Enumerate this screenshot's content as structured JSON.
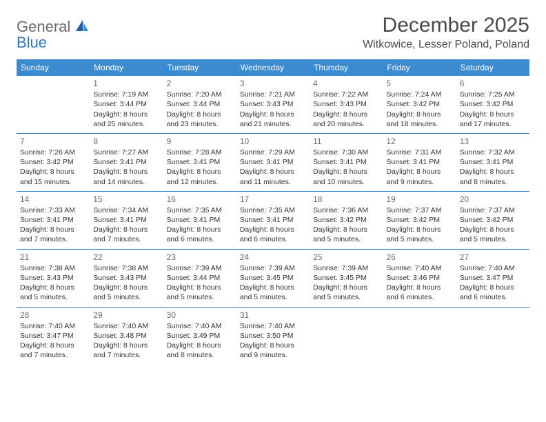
{
  "brand": {
    "word1": "General",
    "word2": "Blue",
    "text_color_gray": "#6a6a6a",
    "text_color_blue": "#2f78c3"
  },
  "header": {
    "title": "December 2025",
    "location": "Witkowice, Lesser Poland, Poland"
  },
  "colors": {
    "header_bg": "#3b8bd0",
    "header_fg": "#ffffff",
    "rule": "#2f78c3",
    "body_text": "#333333",
    "daynum": "#6a6a6a",
    "page_bg": "#ffffff"
  },
  "columns": [
    "Sunday",
    "Monday",
    "Tuesday",
    "Wednesday",
    "Thursday",
    "Friday",
    "Saturday"
  ],
  "weeks": [
    [
      null,
      {
        "n": "1",
        "sr": "Sunrise: 7:19 AM",
        "ss": "Sunset: 3:44 PM",
        "d1": "Daylight: 8 hours",
        "d2": "and 25 minutes."
      },
      {
        "n": "2",
        "sr": "Sunrise: 7:20 AM",
        "ss": "Sunset: 3:44 PM",
        "d1": "Daylight: 8 hours",
        "d2": "and 23 minutes."
      },
      {
        "n": "3",
        "sr": "Sunrise: 7:21 AM",
        "ss": "Sunset: 3:43 PM",
        "d1": "Daylight: 8 hours",
        "d2": "and 21 minutes."
      },
      {
        "n": "4",
        "sr": "Sunrise: 7:22 AM",
        "ss": "Sunset: 3:43 PM",
        "d1": "Daylight: 8 hours",
        "d2": "and 20 minutes."
      },
      {
        "n": "5",
        "sr": "Sunrise: 7:24 AM",
        "ss": "Sunset: 3:42 PM",
        "d1": "Daylight: 8 hours",
        "d2": "and 18 minutes."
      },
      {
        "n": "6",
        "sr": "Sunrise: 7:25 AM",
        "ss": "Sunset: 3:42 PM",
        "d1": "Daylight: 8 hours",
        "d2": "and 17 minutes."
      }
    ],
    [
      {
        "n": "7",
        "sr": "Sunrise: 7:26 AM",
        "ss": "Sunset: 3:42 PM",
        "d1": "Daylight: 8 hours",
        "d2": "and 15 minutes."
      },
      {
        "n": "8",
        "sr": "Sunrise: 7:27 AM",
        "ss": "Sunset: 3:41 PM",
        "d1": "Daylight: 8 hours",
        "d2": "and 14 minutes."
      },
      {
        "n": "9",
        "sr": "Sunrise: 7:28 AM",
        "ss": "Sunset: 3:41 PM",
        "d1": "Daylight: 8 hours",
        "d2": "and 12 minutes."
      },
      {
        "n": "10",
        "sr": "Sunrise: 7:29 AM",
        "ss": "Sunset: 3:41 PM",
        "d1": "Daylight: 8 hours",
        "d2": "and 11 minutes."
      },
      {
        "n": "11",
        "sr": "Sunrise: 7:30 AM",
        "ss": "Sunset: 3:41 PM",
        "d1": "Daylight: 8 hours",
        "d2": "and 10 minutes."
      },
      {
        "n": "12",
        "sr": "Sunrise: 7:31 AM",
        "ss": "Sunset: 3:41 PM",
        "d1": "Daylight: 8 hours",
        "d2": "and 9 minutes."
      },
      {
        "n": "13",
        "sr": "Sunrise: 7:32 AM",
        "ss": "Sunset: 3:41 PM",
        "d1": "Daylight: 8 hours",
        "d2": "and 8 minutes."
      }
    ],
    [
      {
        "n": "14",
        "sr": "Sunrise: 7:33 AM",
        "ss": "Sunset: 3:41 PM",
        "d1": "Daylight: 8 hours",
        "d2": "and 7 minutes."
      },
      {
        "n": "15",
        "sr": "Sunrise: 7:34 AM",
        "ss": "Sunset: 3:41 PM",
        "d1": "Daylight: 8 hours",
        "d2": "and 7 minutes."
      },
      {
        "n": "16",
        "sr": "Sunrise: 7:35 AM",
        "ss": "Sunset: 3:41 PM",
        "d1": "Daylight: 8 hours",
        "d2": "and 6 minutes."
      },
      {
        "n": "17",
        "sr": "Sunrise: 7:35 AM",
        "ss": "Sunset: 3:41 PM",
        "d1": "Daylight: 8 hours",
        "d2": "and 6 minutes."
      },
      {
        "n": "18",
        "sr": "Sunrise: 7:36 AM",
        "ss": "Sunset: 3:42 PM",
        "d1": "Daylight: 8 hours",
        "d2": "and 5 minutes."
      },
      {
        "n": "19",
        "sr": "Sunrise: 7:37 AM",
        "ss": "Sunset: 3:42 PM",
        "d1": "Daylight: 8 hours",
        "d2": "and 5 minutes."
      },
      {
        "n": "20",
        "sr": "Sunrise: 7:37 AM",
        "ss": "Sunset: 3:42 PM",
        "d1": "Daylight: 8 hours",
        "d2": "and 5 minutes."
      }
    ],
    [
      {
        "n": "21",
        "sr": "Sunrise: 7:38 AM",
        "ss": "Sunset: 3:43 PM",
        "d1": "Daylight: 8 hours",
        "d2": "and 5 minutes."
      },
      {
        "n": "22",
        "sr": "Sunrise: 7:38 AM",
        "ss": "Sunset: 3:43 PM",
        "d1": "Daylight: 8 hours",
        "d2": "and 5 minutes."
      },
      {
        "n": "23",
        "sr": "Sunrise: 7:39 AM",
        "ss": "Sunset: 3:44 PM",
        "d1": "Daylight: 8 hours",
        "d2": "and 5 minutes."
      },
      {
        "n": "24",
        "sr": "Sunrise: 7:39 AM",
        "ss": "Sunset: 3:45 PM",
        "d1": "Daylight: 8 hours",
        "d2": "and 5 minutes."
      },
      {
        "n": "25",
        "sr": "Sunrise: 7:39 AM",
        "ss": "Sunset: 3:45 PM",
        "d1": "Daylight: 8 hours",
        "d2": "and 5 minutes."
      },
      {
        "n": "26",
        "sr": "Sunrise: 7:40 AM",
        "ss": "Sunset: 3:46 PM",
        "d1": "Daylight: 8 hours",
        "d2": "and 6 minutes."
      },
      {
        "n": "27",
        "sr": "Sunrise: 7:40 AM",
        "ss": "Sunset: 3:47 PM",
        "d1": "Daylight: 8 hours",
        "d2": "and 6 minutes."
      }
    ],
    [
      {
        "n": "28",
        "sr": "Sunrise: 7:40 AM",
        "ss": "Sunset: 3:47 PM",
        "d1": "Daylight: 8 hours",
        "d2": "and 7 minutes."
      },
      {
        "n": "29",
        "sr": "Sunrise: 7:40 AM",
        "ss": "Sunset: 3:48 PM",
        "d1": "Daylight: 8 hours",
        "d2": "and 7 minutes."
      },
      {
        "n": "30",
        "sr": "Sunrise: 7:40 AM",
        "ss": "Sunset: 3:49 PM",
        "d1": "Daylight: 8 hours",
        "d2": "and 8 minutes."
      },
      {
        "n": "31",
        "sr": "Sunrise: 7:40 AM",
        "ss": "Sunset: 3:50 PM",
        "d1": "Daylight: 8 hours",
        "d2": "and 9 minutes."
      },
      null,
      null,
      null
    ]
  ]
}
